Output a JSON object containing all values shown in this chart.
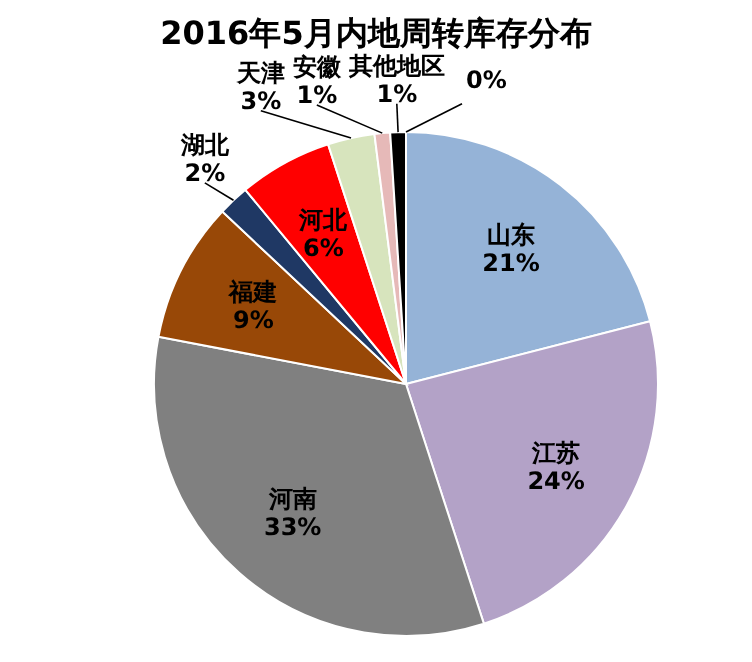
{
  "chart_data": {
    "type": "pie",
    "title": "2016年5月内地周转库存分布",
    "categories": [
      "山东",
      "江苏",
      "河南",
      "福建",
      "湖北",
      "河北",
      "天津",
      "安徽",
      "其他地区",
      null
    ],
    "values": [
      21,
      24,
      33,
      9,
      2,
      6,
      3,
      1,
      1,
      0
    ],
    "colors": [
      "#95b3d7",
      "#b3a2c7",
      "#808080",
      "#984807",
      "#1f3864",
      "#ff0000",
      "#d7e4bd",
      "#e6b9b8",
      "#000000",
      "#ffffff"
    ],
    "value_labels": [
      "21%",
      "24%",
      "33%",
      "9%",
      "2%",
      "6%",
      "3%",
      "1%",
      "1%",
      "0%"
    ]
  }
}
